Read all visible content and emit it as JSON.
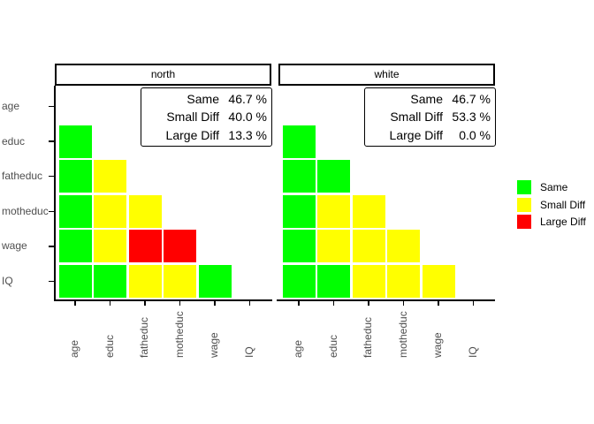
{
  "chart_data": {
    "type": "heatmap",
    "title": "",
    "grid": false,
    "axis_text_color": "#4f4f4f",
    "variables": [
      "age",
      "educ",
      "fatheduc",
      "motheduc",
      "wage",
      "IQ"
    ],
    "legend": {
      "position": "right",
      "items": [
        {
          "label": "Same",
          "color": "#00FF00"
        },
        {
          "label": "Small Diff",
          "color": "#FFFF00"
        },
        {
          "label": "Large Diff",
          "color": "#FF0000"
        }
      ]
    },
    "panels": [
      {
        "title": "north",
        "stats": [
          {
            "label": "Same",
            "value": "46.7 %"
          },
          {
            "label": "Small Diff",
            "value": "40.0 %"
          },
          {
            "label": "Large Diff",
            "value": "13.3 %"
          }
        ],
        "matrix": [
          [
            null,
            null,
            null,
            null,
            null,
            null
          ],
          [
            "Same",
            null,
            null,
            null,
            null,
            null
          ],
          [
            "Same",
            "Small Diff",
            null,
            null,
            null,
            null
          ],
          [
            "Same",
            "Small Diff",
            "Small Diff",
            null,
            null,
            null
          ],
          [
            "Same",
            "Small Diff",
            "Large Diff",
            "Large Diff",
            null,
            null
          ],
          [
            "Same",
            "Same",
            "Small Diff",
            "Small Diff",
            "Same",
            null
          ]
        ]
      },
      {
        "title": "white",
        "stats": [
          {
            "label": "Same",
            "value": "46.7 %"
          },
          {
            "label": "Small Diff",
            "value": "53.3 %"
          },
          {
            "label": "Large Diff",
            "value": "0.0 %"
          }
        ],
        "matrix": [
          [
            null,
            null,
            null,
            null,
            null,
            null
          ],
          [
            "Same",
            null,
            null,
            null,
            null,
            null
          ],
          [
            "Same",
            "Same",
            null,
            null,
            null,
            null
          ],
          [
            "Same",
            "Small Diff",
            "Small Diff",
            null,
            null,
            null
          ],
          [
            "Same",
            "Small Diff",
            "Small Diff",
            "Small Diff",
            null,
            null
          ],
          [
            "Same",
            "Same",
            "Small Diff",
            "Small Diff",
            "Small Diff",
            null
          ]
        ]
      }
    ]
  }
}
